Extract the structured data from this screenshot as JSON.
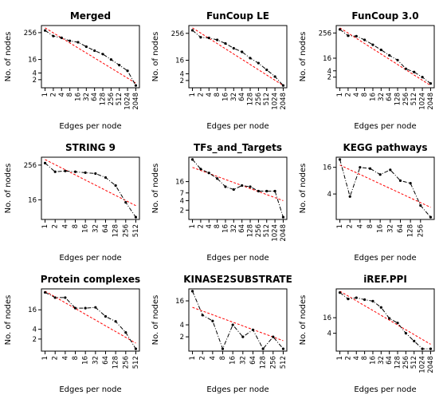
{
  "colors": {
    "data_line": "#000000",
    "fit_line": "#ff0000",
    "axis": "#000000"
  },
  "chart_data": [
    {
      "type": "line",
      "title": "Merged",
      "xlabel": "Edges per node",
      "ylabel": "No. of nodes",
      "scale": "log2",
      "xticks": [
        "1",
        "2",
        "4",
        "8",
        "16",
        "32",
        "64",
        "128",
        "256",
        "512",
        "1024",
        "2048"
      ],
      "yticks": [
        "2",
        "4",
        "16",
        "256"
      ],
      "x": [
        1,
        2,
        4,
        8,
        16,
        32,
        64,
        128,
        256,
        512,
        1024,
        2048
      ],
      "y": [
        320,
        180,
        150,
        110,
        95,
        60,
        40,
        28,
        16,
        9,
        5,
        1.1
      ],
      "fit": {
        "x": [
          1,
          2048
        ],
        "y": [
          420,
          1.4
        ]
      }
    },
    {
      "type": "line",
      "title": "FunCoup LE",
      "xlabel": "Edges per node",
      "ylabel": "No. of nodes",
      "scale": "log2",
      "xticks": [
        "1",
        "2",
        "4",
        "8",
        "16",
        "32",
        "64",
        "128",
        "256",
        "512",
        "1024",
        "2048"
      ],
      "yticks": [
        "2",
        "4",
        "16",
        "256"
      ],
      "x": [
        1,
        2,
        4,
        8,
        16,
        32,
        64,
        128,
        256,
        512,
        1024,
        2048
      ],
      "y": [
        350,
        170,
        160,
        130,
        90,
        55,
        38,
        20,
        12,
        6,
        3,
        1.2
      ],
      "fit": {
        "x": [
          1,
          2048
        ],
        "y": [
          450,
          1.2
        ]
      }
    },
    {
      "type": "line",
      "title": "FunCoup 3.0",
      "xlabel": "Edges per node",
      "ylabel": "No. of nodes",
      "scale": "log2",
      "xticks": [
        "1",
        "2",
        "4",
        "8",
        "16",
        "32",
        "64",
        "128",
        "256",
        "512",
        "1024",
        "2048"
      ],
      "yticks": [
        "2",
        "4",
        "16",
        "256"
      ],
      "x": [
        1,
        2,
        4,
        8,
        16,
        32,
        64,
        128,
        256,
        512,
        1024,
        2048
      ],
      "y": [
        380,
        190,
        180,
        120,
        70,
        40,
        22,
        13,
        5,
        3.5,
        2,
        1
      ],
      "fit": {
        "x": [
          1,
          2048
        ],
        "y": [
          450,
          0.8
        ]
      }
    },
    {
      "type": "line",
      "title": "STRING 9",
      "xlabel": "Edges per node",
      "ylabel": "No. of nodes",
      "scale": "log2",
      "xticks": [
        "1",
        "2",
        "4",
        "8",
        "16",
        "32",
        "64",
        "128",
        "256",
        "512"
      ],
      "yticks": [
        "16",
        "256"
      ],
      "x": [
        1,
        2,
        4,
        8,
        16,
        32,
        64,
        128,
        256,
        512
      ],
      "y": [
        300,
        150,
        160,
        150,
        140,
        130,
        95,
        50,
        13,
        4
      ],
      "fit": {
        "x": [
          1,
          512
        ],
        "y": [
          400,
          10
        ]
      }
    },
    {
      "type": "line",
      "title": "TFs_and_Targets",
      "xlabel": "Edges per node",
      "ylabel": "No. of nodes",
      "scale": "log2",
      "xticks": [
        "1",
        "2",
        "4",
        "8",
        "16",
        "32",
        "64",
        "128",
        "256",
        "512",
        "1024",
        "2048"
      ],
      "yticks": [
        "2",
        "4",
        "7",
        "16"
      ],
      "x": [
        1,
        2,
        4,
        8,
        16,
        32,
        64,
        128,
        256,
        512,
        1024,
        2048
      ],
      "y": [
        80,
        40,
        30,
        20,
        11,
        9,
        12,
        11,
        8,
        8,
        8,
        1.2
      ],
      "fit": {
        "x": [
          1,
          2048
        ],
        "y": [
          45,
          4
        ]
      }
    },
    {
      "type": "line",
      "title": "KEGG pathways",
      "xlabel": "Edges per node",
      "ylabel": "No. of nodes",
      "scale": "log2",
      "xticks": [
        "1",
        "2",
        "4",
        "8",
        "16",
        "32",
        "64",
        "128",
        "256"
      ],
      "yticks": [
        "4",
        "16"
      ],
      "x": [
        1,
        2,
        4,
        8,
        16,
        32,
        64,
        128,
        256,
        512
      ],
      "y": [
        24,
        3.5,
        16,
        15,
        11,
        14,
        8,
        7,
        2.2,
        1.2
      ],
      "fit": {
        "x": [
          1,
          512
        ],
        "y": [
          18,
          2
        ]
      }
    },
    {
      "type": "line",
      "title": "Protein complexes",
      "xlabel": "Edges per node",
      "ylabel": "No. of nodes",
      "scale": "log2",
      "xticks": [
        "1",
        "2",
        "4",
        "8",
        "16",
        "32",
        "64",
        "128",
        "256",
        "512"
      ],
      "yticks": [
        "2",
        "4",
        "16"
      ],
      "x": [
        1,
        2,
        4,
        8,
        16,
        32,
        64,
        128,
        256,
        512
      ],
      "y": [
        55,
        38,
        38,
        18,
        18,
        19,
        10,
        7,
        3.2,
        1
      ],
      "fit": {
        "x": [
          1,
          512
        ],
        "y": [
          60,
          1.5
        ]
      }
    },
    {
      "type": "line",
      "title": "KINASE2SUBSTRATE",
      "xlabel": "Edges per node",
      "ylabel": "No. of nodes",
      "scale": "log2",
      "xticks": [
        "1",
        "2",
        "4",
        "8",
        "16",
        "32",
        "64",
        "128",
        "256",
        "512"
      ],
      "yticks": [
        "2",
        "4",
        "16"
      ],
      "x": [
        1,
        2,
        4,
        8,
        16,
        32,
        64,
        128,
        256,
        512
      ],
      "y": [
        28,
        7,
        5,
        1,
        4,
        2,
        3,
        1,
        2,
        1
      ],
      "fit": {
        "x": [
          1,
          512
        ],
        "y": [
          11,
          1.6
        ]
      }
    },
    {
      "type": "line",
      "title": "iREF.PPI",
      "xlabel": "Edges per node",
      "ylabel": "No. of nodes",
      "scale": "log2",
      "xticks": [
        "1",
        "2",
        "4",
        "8",
        "16",
        "32",
        "64",
        "128",
        "256",
        "512",
        "1024",
        "2048"
      ],
      "yticks": [
        "4",
        "16"
      ],
      "x": [
        1,
        2,
        4,
        8,
        16,
        32,
        64,
        128,
        256,
        512,
        1024,
        2048
      ],
      "y": [
        150,
        85,
        95,
        80,
        70,
        40,
        15,
        10,
        4,
        2,
        1,
        1
      ],
      "fit": {
        "x": [
          1,
          2048
        ],
        "y": [
          170,
          1.5
        ]
      }
    }
  ]
}
